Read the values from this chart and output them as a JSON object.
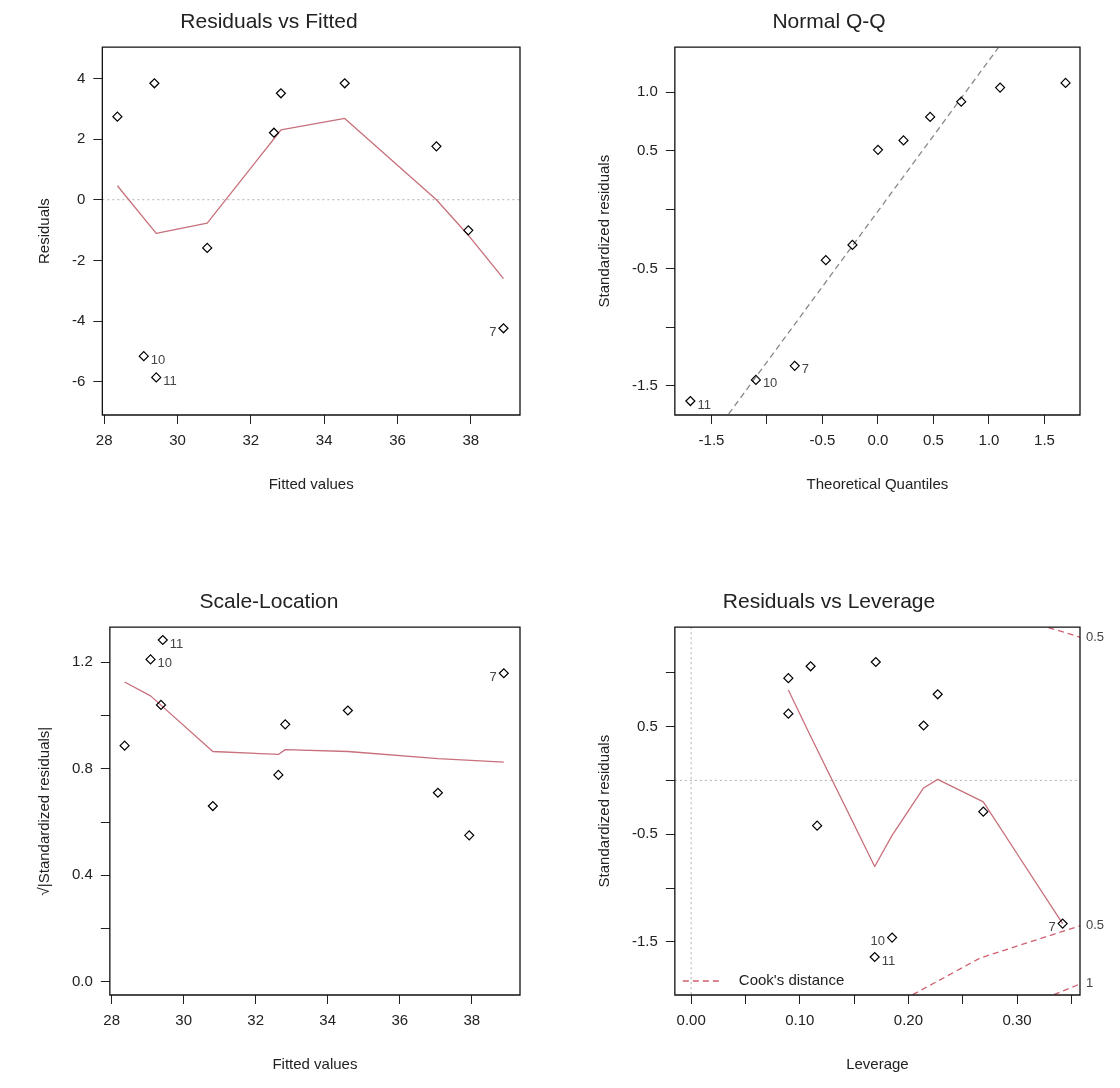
{
  "chart_data": [
    {
      "type": "scatter",
      "title": "Residuals vs Fitted",
      "xlabel": "Fitted values",
      "ylabel": "Residuals",
      "xlim": [
        27.95,
        39.34
      ],
      "ylim": [
        -7.1,
        5.03
      ],
      "xticks": [
        28,
        30,
        32,
        34,
        36,
        38
      ],
      "yticks": [
        -6,
        -4,
        -2,
        0,
        2,
        4
      ],
      "marker": "diamond",
      "series": [
        {
          "type": "scatter",
          "color": "#000000",
          "x": [
            28.36,
            29.37,
            29.08,
            29.42,
            30.81,
            32.63,
            32.82,
            34.56,
            37.06,
            37.93,
            38.89
          ],
          "values": [
            2.74,
            3.84,
            -5.16,
            -5.86,
            -1.59,
            2.21,
            3.51,
            3.84,
            1.76,
            -1.01,
            -4.24
          ]
        },
        {
          "type": "line",
          "color": "#c8707c",
          "marker": "none",
          "x": [
            28.36,
            29.42,
            30.81,
            32.82,
            34.56,
            37.06,
            37.93,
            38.89
          ],
          "values": [
            0.46,
            -1.11,
            -0.77,
            2.3,
            2.68,
            0.0,
            -1.17,
            -2.6
          ]
        }
      ],
      "ref_lines": [
        {
          "axis": "y",
          "value": 0,
          "color": "#b0b0b0",
          "line_style": "dotted"
        }
      ],
      "annotations": [
        {
          "text": "10",
          "x": 29.08,
          "y": -5.16
        },
        {
          "text": "11",
          "x": 29.42,
          "y": -5.86
        },
        {
          "text": "7",
          "x": 38.89,
          "y": -4.24
        }
      ]
    },
    {
      "type": "scatter",
      "title": "Normal Q-Q",
      "xlabel": "Theoretical Quantiles",
      "ylabel": "Standardized residuals",
      "xlim": [
        -1.83,
        1.82
      ],
      "ylim": [
        -1.749,
        1.384
      ],
      "xticks": [
        -1.5,
        {
          "value": -1,
          "label": null
        },
        -0.5,
        {
          "value": 0,
          "label": "0.0"
        },
        0.5,
        {
          "value": 1,
          "label": "1.0"
        },
        1.5
      ],
      "yticks": [
        -1.5,
        {
          "value": -1,
          "label": null
        },
        -0.5,
        {
          "value": 0,
          "label": null
        },
        0.5,
        {
          "value": 1,
          "label": "1.0"
        }
      ],
      "marker": "diamond",
      "series": [
        {
          "type": "scatter",
          "color": "#000000",
          "x": [
            -1.69,
            -1.1,
            -0.75,
            -0.47,
            -0.23,
            0.0,
            0.23,
            0.47,
            0.75,
            1.1,
            1.69
          ],
          "values": [
            -1.63,
            -1.45,
            -1.33,
            -0.43,
            -0.3,
            0.51,
            0.59,
            0.79,
            0.92,
            1.04,
            1.08
          ]
        },
        {
          "type": "line",
          "color": "#888888",
          "marker": "none",
          "line_style": "dashed",
          "x": [
            -1.345,
            1.084
          ],
          "values": [
            -1.74,
            1.38
          ]
        }
      ],
      "annotations": [
        {
          "text": "11",
          "x": -1.69,
          "y": -1.63
        },
        {
          "text": "10",
          "x": -1.1,
          "y": -1.45
        },
        {
          "text": "7",
          "x": -0.75,
          "y": -1.33
        }
      ]
    },
    {
      "type": "scatter",
      "title": "Scale-Location",
      "xlabel": "Fitted values",
      "ylabel": "√|Standardized residuals|",
      "xlim": [
        27.95,
        39.34
      ],
      "ylim": [
        -0.05,
        1.332
      ],
      "xticks": [
        28,
        30,
        32,
        34,
        36,
        38
      ],
      "yticks": [
        {
          "value": 0,
          "label": "0.0"
        },
        {
          "value": 0.2,
          "label": null
        },
        0.4,
        {
          "value": 0.6,
          "label": null
        },
        0.8,
        {
          "value": 1,
          "label": null
        },
        1.2
      ],
      "marker": "diamond",
      "series": [
        {
          "type": "scatter",
          "color": "#000000",
          "x": [
            28.36,
            29.08,
            29.42,
            29.37,
            30.81,
            32.63,
            32.82,
            34.56,
            37.06,
            37.93,
            38.89
          ],
          "values": [
            0.887,
            1.211,
            1.284,
            1.04,
            0.66,
            0.777,
            0.967,
            1.019,
            0.71,
            0.55,
            1.159
          ]
        },
        {
          "type": "line",
          "color": "#c8707c",
          "marker": "none",
          "x": [
            28.36,
            29.08,
            30.81,
            32.63,
            32.82,
            34.56,
            37.06,
            38.89
          ],
          "values": [
            1.126,
            1.074,
            0.865,
            0.854,
            0.872,
            0.865,
            0.838,
            0.825
          ]
        }
      ],
      "annotations": [
        {
          "text": "11",
          "x": 29.42,
          "y": 1.284
        },
        {
          "text": "10",
          "x": 29.08,
          "y": 1.211
        },
        {
          "text": "7",
          "x": 38.89,
          "y": 1.159
        }
      ]
    },
    {
      "type": "scatter",
      "title": "Residuals vs Leverage",
      "xlabel": "Leverage",
      "ylabel": "Standardized residuals",
      "xlim": [
        -0.015,
        0.358
      ],
      "ylim": [
        -1.993,
        1.423
      ],
      "xticks": [
        {
          "value": 0,
          "label": "0.00"
        },
        {
          "value": 0.05,
          "label": null
        },
        {
          "value": 0.1,
          "label": "0.10"
        },
        {
          "value": 0.15,
          "label": null
        },
        {
          "value": 0.2,
          "label": "0.20"
        },
        {
          "value": 0.25,
          "label": null
        },
        {
          "value": 0.3,
          "label": "0.30"
        },
        {
          "value": 0.35,
          "label": null
        }
      ],
      "yticks": [
        -1.5,
        {
          "value": -1,
          "label": null
        },
        -0.5,
        {
          "value": 0,
          "label": null
        },
        0.5,
        {
          "value": 1,
          "label": null
        }
      ],
      "marker": "diamond",
      "legend": "bottom left",
      "series": [
        {
          "type": "scatter",
          "color": "#000000",
          "x": [
            0.0895,
            0.0895,
            0.11,
            0.116,
            0.17,
            0.214,
            0.227,
            0.269,
            0.342,
            0.185,
            0.169
          ],
          "values": [
            0.95,
            0.62,
            1.06,
            -0.42,
            1.1,
            0.51,
            0.8,
            -0.29,
            -1.33,
            -1.46,
            -1.64
          ]
        },
        {
          "type": "line",
          "color": "#c8707c",
          "marker": "none",
          "x": [
            0.0895,
            0.11,
            0.169,
            0.185,
            0.214,
            0.227,
            0.269,
            0.342
          ],
          "values": [
            0.84,
            0.41,
            -0.8,
            -0.51,
            -0.07,
            0.01,
            -0.2,
            -1.33
          ]
        },
        {
          "type": "line",
          "name": "Cook's distance",
          "color": "#d0606f",
          "marker": "none",
          "line_style": "dashed",
          "x": [
            0.204,
            0.266,
            0.358
          ],
          "values": [
            -1.99,
            -1.65,
            -1.35
          ]
        },
        {
          "type": "line",
          "color": "#d0606f",
          "marker": "none",
          "line_style": "dashed",
          "x": [
            0.329,
            0.358
          ],
          "values": [
            1.42,
            1.33
          ]
        },
        {
          "type": "line",
          "color": "#d0606f",
          "marker": "none",
          "line_style": "dashed",
          "x": [
            0.334,
            0.358
          ],
          "values": [
            -1.99,
            -1.89
          ]
        }
      ],
      "ref_lines": [
        {
          "axis": "y",
          "value": 0,
          "color": "#b0b0b0",
          "line_style": "dotted"
        },
        {
          "axis": "x",
          "value": 0,
          "color": "#b0b0b0",
          "line_style": "dotted"
        }
      ],
      "annotations": [
        {
          "text": "10",
          "x": 0.185,
          "y": -1.456
        },
        {
          "text": "11",
          "x": 0.169,
          "y": -1.64
        },
        {
          "text": "7",
          "x": 0.342,
          "y": -1.327
        },
        {
          "text": "0.5",
          "x": 0.358,
          "y": 1.33
        },
        {
          "text": "0.5",
          "x": 0.358,
          "y": -1.35
        },
        {
          "text": "1",
          "x": 0.358,
          "y": -1.89
        }
      ]
    }
  ]
}
